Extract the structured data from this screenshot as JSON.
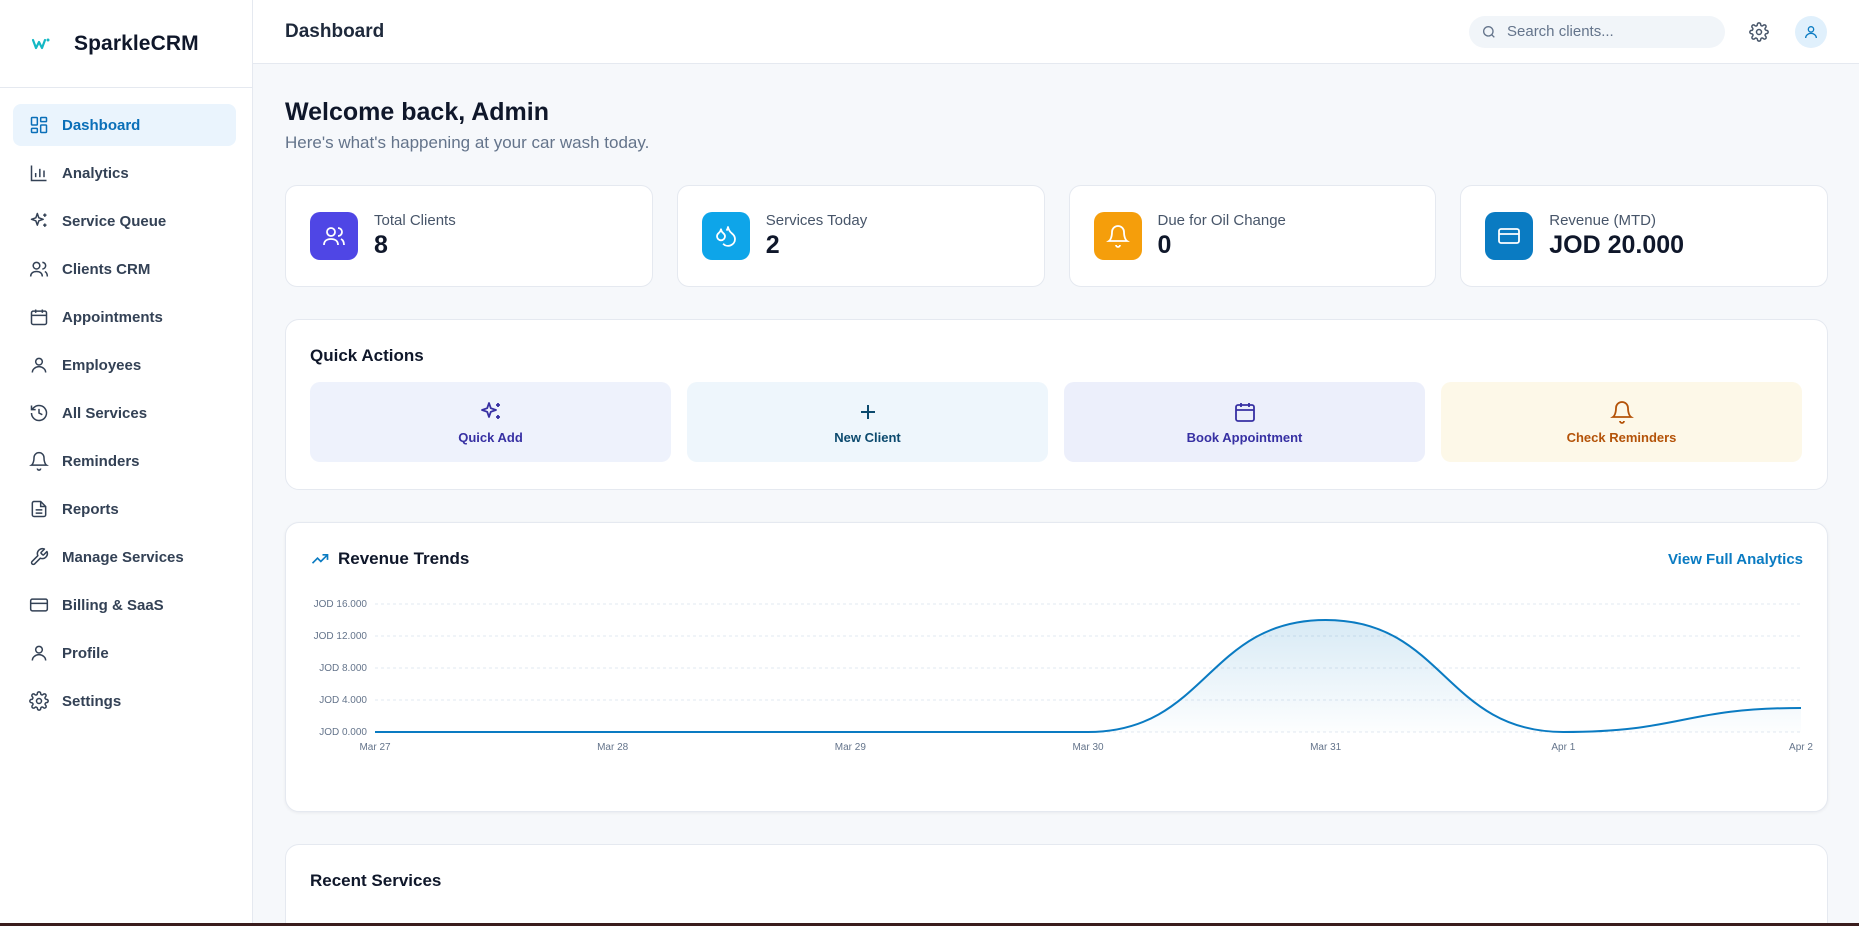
{
  "app": {
    "name": "SparkleCRM"
  },
  "sidebar": {
    "items": [
      {
        "label": "Dashboard",
        "icon": "dashboard-icon",
        "active": true
      },
      {
        "label": "Analytics",
        "icon": "bar-chart-icon"
      },
      {
        "label": "Service Queue",
        "icon": "sparkles-icon"
      },
      {
        "label": "Clients CRM",
        "icon": "users-icon"
      },
      {
        "label": "Appointments",
        "icon": "calendar-icon"
      },
      {
        "label": "Employees",
        "icon": "user-icon"
      },
      {
        "label": "All Services",
        "icon": "history-icon"
      },
      {
        "label": "Reminders",
        "icon": "bell-icon"
      },
      {
        "label": "Reports",
        "icon": "file-text-icon"
      },
      {
        "label": "Manage Services",
        "icon": "wrench-icon"
      },
      {
        "label": "Billing & SaaS",
        "icon": "credit-card-icon"
      },
      {
        "label": "Profile",
        "icon": "user-icon"
      },
      {
        "label": "Settings",
        "icon": "gear-icon"
      }
    ]
  },
  "header": {
    "title": "Dashboard",
    "search_placeholder": "Search clients..."
  },
  "welcome": {
    "title": "Welcome back, Admin",
    "subtitle": "Here's what's happening at your car wash today."
  },
  "stats": [
    {
      "label": "Total Clients",
      "value": "8",
      "color": "#4f46e5",
      "icon": "users-icon"
    },
    {
      "label": "Services Today",
      "value": "2",
      "color": "#0ea5e9",
      "icon": "droplets-icon"
    },
    {
      "label": "Due for Oil Change",
      "value": "0",
      "color": "#f59e0b",
      "icon": "bell-icon"
    },
    {
      "label": "Revenue (MTD)",
      "value": "JOD 20.000",
      "color": "#0a7bc2",
      "icon": "credit-card-icon"
    }
  ],
  "quick_actions": {
    "title": "Quick Actions",
    "items": [
      {
        "label": "Quick Add",
        "icon": "sparkles-icon",
        "bg": "#eef2fc",
        "fg": "#3730a3"
      },
      {
        "label": "New Client",
        "icon": "plus-icon",
        "bg": "#eef6fc",
        "fg": "#0c4a6e"
      },
      {
        "label": "Book Appointment",
        "icon": "calendar-icon",
        "bg": "#eceffb",
        "fg": "#3730a3"
      },
      {
        "label": "Check Reminders",
        "icon": "bell-icon",
        "bg": "#fdf8e8",
        "fg": "#b45309"
      }
    ]
  },
  "revenue": {
    "title": "Revenue Trends",
    "link": "View Full Analytics"
  },
  "chart_data": {
    "type": "area",
    "title": "Revenue Trends",
    "categories": [
      "Mar 27",
      "Mar 28",
      "Mar 29",
      "Mar 30",
      "Mar 31",
      "Apr 1",
      "Apr 2"
    ],
    "values": [
      0,
      0,
      0,
      0,
      14000,
      0,
      3000
    ],
    "y_ticks": [
      "JOD 0.000",
      "JOD 4.000",
      "JOD 8.000",
      "JOD 12.000",
      "JOD 16.000"
    ],
    "ylim": [
      0,
      16000
    ],
    "grid": true,
    "color": "#0a7bc2"
  },
  "recent": {
    "title": "Recent Services"
  },
  "colors": {
    "accent": "#0a7bc2",
    "sidebar_active_bg": "#eaf4fd"
  }
}
